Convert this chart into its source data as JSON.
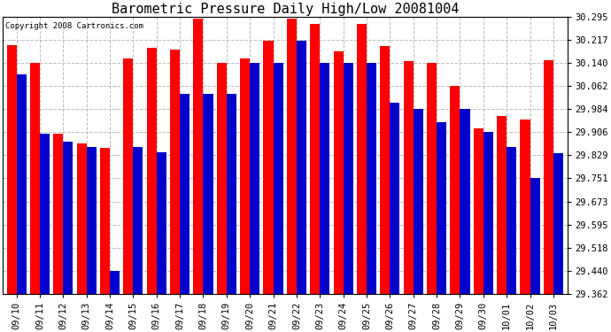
{
  "title": "Barometric Pressure Daily High/Low 20081004",
  "copyright": "Copyright 2008 Cartronics.com",
  "dates": [
    "09/10",
    "09/11",
    "09/12",
    "09/13",
    "09/14",
    "09/15",
    "09/16",
    "09/17",
    "09/18",
    "09/19",
    "09/20",
    "09/21",
    "09/22",
    "09/23",
    "09/24",
    "09/25",
    "09/26",
    "09/27",
    "09/28",
    "09/29",
    "09/30",
    "10/01",
    "10/02",
    "10/03"
  ],
  "highs": [
    30.2,
    30.14,
    29.9,
    29.87,
    29.855,
    30.155,
    30.19,
    30.185,
    30.29,
    30.14,
    30.155,
    30.215,
    30.29,
    30.27,
    30.18,
    30.27,
    30.195,
    30.145,
    30.14,
    30.062,
    29.92,
    29.96,
    29.95,
    30.15
  ],
  "lows": [
    30.1,
    29.9,
    29.875,
    29.858,
    29.44,
    29.858,
    29.84,
    30.035,
    30.035,
    30.035,
    30.14,
    30.14,
    30.215,
    30.14,
    30.14,
    30.14,
    30.005,
    29.984,
    29.94,
    29.984,
    29.906,
    29.858,
    29.751,
    29.835
  ],
  "high_color": "#ff0000",
  "low_color": "#0000cc",
  "bg_color": "#ffffff",
  "plot_bg_color": "#ffffff",
  "grid_color": "#bbbbbb",
  "yticks": [
    29.362,
    29.44,
    29.518,
    29.595,
    29.673,
    29.751,
    29.829,
    29.906,
    29.984,
    30.062,
    30.14,
    30.217,
    30.295
  ],
  "ymin": 29.362,
  "ymax": 30.295,
  "title_fontsize": 11,
  "tick_fontsize": 7.5,
  "copyright_fontsize": 6.5
}
